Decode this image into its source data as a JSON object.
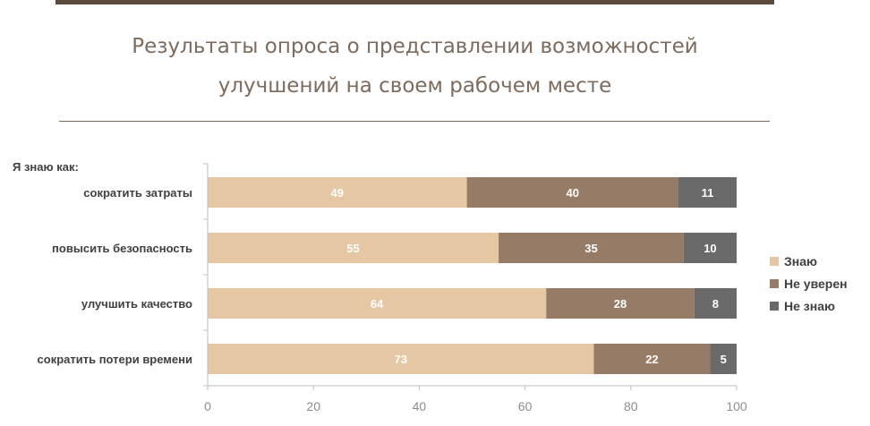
{
  "header": {
    "title_line1": "Результаты опроса о представлении возможностей",
    "title_line2": "улучшений на своем рабочем месте"
  },
  "chart_data": {
    "type": "bar",
    "orientation": "horizontal",
    "stacked": true,
    "group_label": "Я знаю как:",
    "categories": [
      "сократить затраты",
      "повысить безопасность",
      "улучшить качество",
      "сократить потери времени"
    ],
    "series": [
      {
        "name": "Знаю",
        "color": "#e6c7a4",
        "values": [
          49,
          55,
          64,
          73
        ]
      },
      {
        "name": "Не уверен",
        "color": "#967c66",
        "values": [
          40,
          35,
          28,
          22
        ]
      },
      {
        "name": "Не знаю",
        "color": "#6a6a6a",
        "values": [
          11,
          10,
          8,
          5
        ]
      }
    ],
    "xlim": [
      0,
      100
    ],
    "xticks": [
      0,
      20,
      40,
      60,
      80,
      100
    ],
    "grid": false,
    "legend_position": "right"
  }
}
